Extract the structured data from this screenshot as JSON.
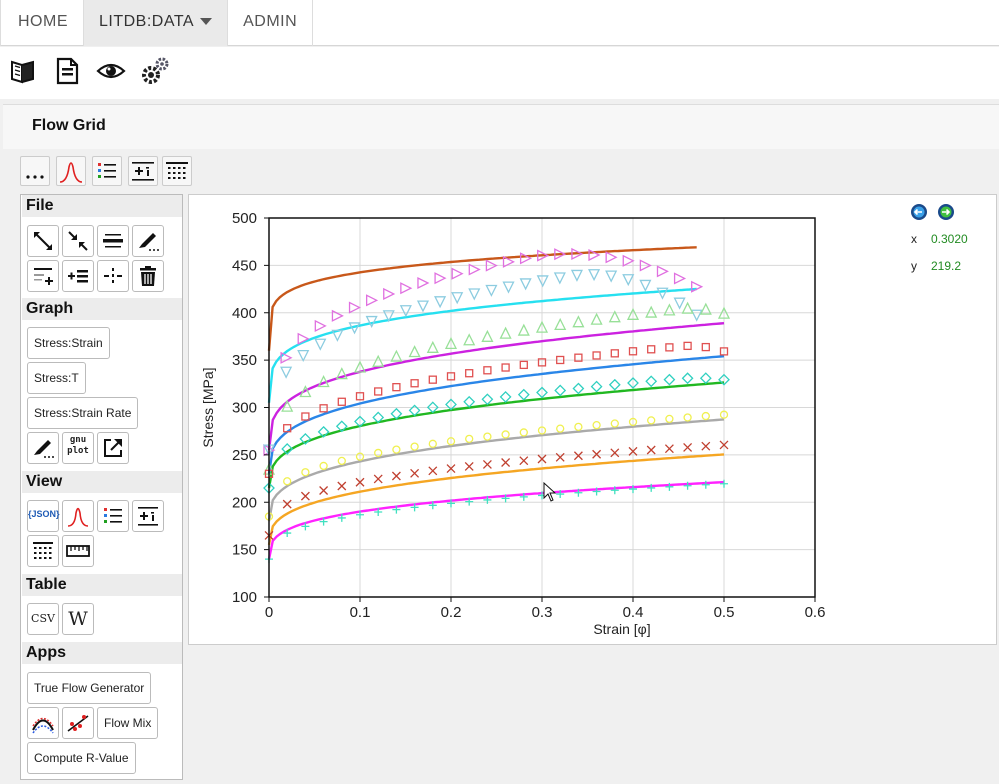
{
  "nav": {
    "tabs": [
      {
        "label": "HOME"
      },
      {
        "label": "LITDB:DATA"
      },
      {
        "label": "ADMIN"
      }
    ]
  },
  "toolbar": {
    "icons": [
      "book-icon",
      "document-icon",
      "eye-icon",
      "gears-icon"
    ]
  },
  "panel": {
    "title": "Flow Grid"
  },
  "view_buttons": [
    "more-icon",
    "bell-curve-icon",
    "list-icon",
    "plus-rows-icon",
    "columns-icon"
  ],
  "sidebar": {
    "file": {
      "title": "File"
    },
    "graph": {
      "title": "Graph",
      "buttons": [
        "Stress:Strain",
        "Stress:T",
        "Stress:Strain Rate"
      ],
      "gnuplot_label": "gnu\nplot"
    },
    "view": {
      "title": "View",
      "json_label": "{JSON}"
    },
    "table": {
      "title": "Table",
      "csv_label": "CSV",
      "w_label": "W"
    },
    "apps": {
      "title": "Apps",
      "true_flow": "True Flow Generator",
      "flow_mix": "Flow Mix",
      "compute_r": "Compute R-Value"
    }
  },
  "readout": {
    "x_label": "x",
    "x_value": "0.3020",
    "y_label": "y",
    "y_value": "219.2"
  },
  "chart_data": {
    "type": "scatter",
    "xlabel": "Strain [φ]",
    "ylabel": "Stress [MPa]",
    "xlim": [
      0,
      0.6
    ],
    "ylim": [
      100,
      500
    ],
    "xticks": [
      "0",
      "0.1",
      "0.2",
      "0.3",
      "0.4",
      "0.5",
      "0.6"
    ],
    "yticks": [
      "100",
      "150",
      "200",
      "250",
      "300",
      "350",
      "400",
      "450",
      "500"
    ],
    "grid": true,
    "curves": [
      {
        "color": "#c8581a",
        "A": 360,
        "B": 125,
        "n": 0.18,
        "x_max": 0.47
      },
      {
        "color": "#26e0f0",
        "A": 305,
        "B": 145,
        "n": 0.25,
        "x_max": 0.47
      },
      {
        "color": "#cc22e0",
        "A": 255,
        "B": 165,
        "n": 0.3,
        "x_max": 0.5
      },
      {
        "color": "#2a86e8",
        "A": 230,
        "B": 155,
        "n": 0.32,
        "x_max": 0.5
      },
      {
        "color": "#21b821",
        "A": 215,
        "B": 140,
        "n": 0.33,
        "x_max": 0.5
      },
      {
        "color": "#aaaaaa",
        "A": 180,
        "B": 135,
        "n": 0.33,
        "x_max": 0.5
      },
      {
        "color": "#f5a623",
        "A": 155,
        "B": 120,
        "n": 0.33,
        "x_max": 0.5
      },
      {
        "color": "#ff22ff",
        "A": 140,
        "B": 100,
        "n": 0.3,
        "x_max": 0.5
      }
    ],
    "markers": [
      {
        "symbol": "tri-right",
        "color": "#e070e0",
        "A": 255,
        "B": 285,
        "n": 0.27,
        "peak": 0.28,
        "drop": 60,
        "x_max": 0.47
      },
      {
        "symbol": "tri-down",
        "color": "#8ccce0",
        "A": 255,
        "B": 250,
        "n": 0.28,
        "peak": 0.33,
        "drop": 60,
        "x_max": 0.47
      },
      {
        "symbol": "tri-up",
        "color": "#98e098",
        "A": 235,
        "B": 215,
        "n": 0.3,
        "peak": 0.45,
        "drop": 10,
        "x_max": 0.5
      },
      {
        "symbol": "square",
        "color": "#e05050",
        "A": 230,
        "B": 175,
        "n": 0.33,
        "peak": 0.45,
        "drop": 10,
        "x_max": 0.5
      },
      {
        "symbol": "diamond",
        "color": "#30d0c0",
        "A": 215,
        "B": 150,
        "n": 0.33,
        "peak": 0.45,
        "drop": 5,
        "x_max": 0.5
      },
      {
        "symbol": "circle",
        "color": "#f0f050",
        "A": 185,
        "B": 135,
        "n": 0.33,
        "peak": 0.45,
        "drop": 0,
        "x_max": 0.5
      },
      {
        "symbol": "x",
        "color": "#c04030",
        "A": 165,
        "B": 120,
        "n": 0.33,
        "peak": 0.45,
        "drop": 0,
        "x_max": 0.5
      },
      {
        "symbol": "plus",
        "color": "#40e0c0",
        "A": 140,
        "B": 100,
        "n": 0.33,
        "peak": 0.45,
        "drop": 0,
        "x_max": 0.5
      }
    ]
  }
}
